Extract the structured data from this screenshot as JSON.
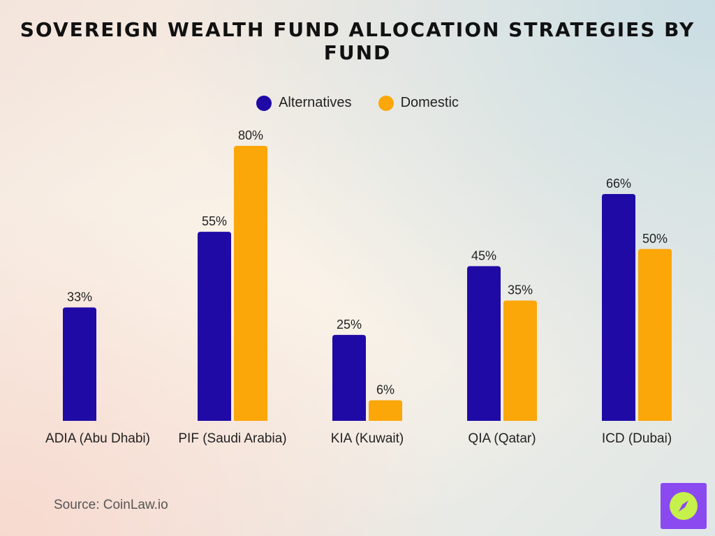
{
  "colors": {
    "alternatives": "#1f0aa6",
    "domestic": "#fba609"
  },
  "source": "Source: CoinLaw.io",
  "logo": {
    "icon": "compass-icon"
  },
  "chart_data": {
    "type": "bar",
    "title": "Sovereign Wealth Fund Allocation Strategies by Fund",
    "categories": [
      "ADIA (Abu Dhabi)",
      "PIF (Saudi Arabia)",
      "KIA (Kuwait)",
      "QIA (Qatar)",
      "ICD (Dubai)"
    ],
    "series": [
      {
        "name": "Alternatives",
        "values": [
          33,
          55,
          25,
          45,
          66
        ],
        "labels": [
          "33%",
          "55%",
          "25%",
          "45%",
          "66%"
        ]
      },
      {
        "name": "Domestic",
        "values": [
          null,
          80,
          6,
          35,
          50
        ],
        "labels": [
          "",
          "80%",
          "6%",
          "35%",
          "50%"
        ]
      }
    ],
    "ylim": [
      0,
      80
    ],
    "grid": false,
    "legend": "top-center"
  }
}
